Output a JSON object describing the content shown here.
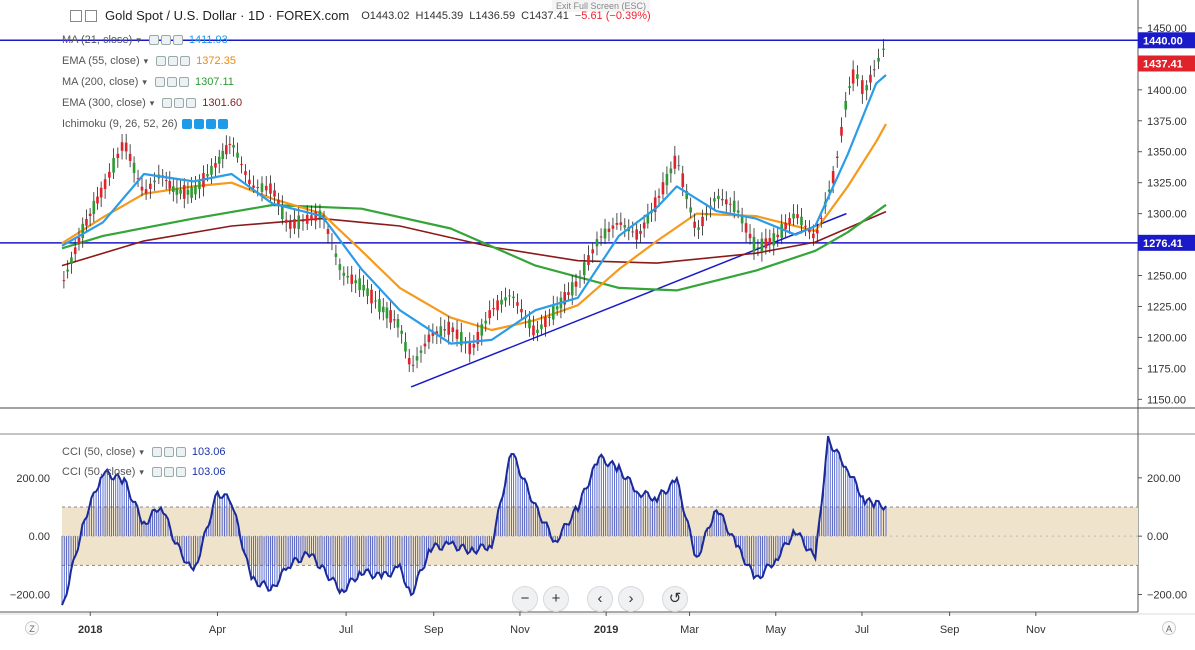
{
  "header": {
    "symbol": "Gold Spot / U.S. Dollar · 1D · FOREX.com",
    "open": "O1443.02",
    "high": "H1445.39",
    "low": "L1436.59",
    "close": "C1437.41",
    "change": "−5.61 (−0.39%)",
    "exit_fullscreen": "Exit Full Screen (ESC)"
  },
  "indicators": [
    {
      "name": "MA (21, close)",
      "value": "1411.93",
      "color": "#1e9be8"
    },
    {
      "name": "EMA (55, close)",
      "value": "1372.35",
      "color": "#f59a1a"
    },
    {
      "name": "MA (200, close)",
      "value": "1307.11",
      "color": "#35a53a"
    },
    {
      "name": "EMA (300, close)",
      "value": "1301.60",
      "color": "#8b1a1a"
    },
    {
      "name": "Ichimoku (9, 26, 52, 26)",
      "value": "",
      "color": "#1e9be8"
    }
  ],
  "cci_legends": [
    {
      "name": "CCI (50, close)",
      "value": "103.06",
      "color": "#1a33a8"
    },
    {
      "name": "CCI (50, close)",
      "value": "103.06",
      "color": "#1a33a8"
    }
  ],
  "price_axis": {
    "ticks": [
      "1450.00",
      "1425.00",
      "1400.00",
      "1375.00",
      "1350.00",
      "1325.00",
      "1300.00",
      "1275.00",
      "1250.00",
      "1225.00",
      "1200.00",
      "1175.00",
      "1150.00"
    ],
    "badges": [
      {
        "label": "1440.00",
        "color": "#1a1ac8"
      },
      {
        "label": "1437.41",
        "color": "#e0222a"
      },
      {
        "label": "1276.41",
        "color": "#1a1ac8"
      }
    ]
  },
  "cci_axis": {
    "ticks": [
      "200.00",
      "0.00",
      "−200.00"
    ]
  },
  "time_axis": [
    "2018",
    "Apr",
    "Jul",
    "Sep",
    "Nov",
    "2019",
    "Mar",
    "May",
    "Jul",
    "Sep",
    "Nov"
  ],
  "nav": {
    "zoom_out": "−",
    "zoom_in": "+",
    "back": "‹",
    "forward": "›",
    "reset": "↺"
  },
  "corners": {
    "left": "Z",
    "right": "A"
  },
  "chart_data": {
    "type": "line",
    "title": "Gold Spot / U.S. Dollar · 1D · FOREX.com",
    "x_ticks": [
      "2018",
      "Apr",
      "Jul",
      "Sep",
      "Nov",
      "2019",
      "Mar",
      "May",
      "Jul",
      "Sep",
      "Nov"
    ],
    "ylim": [
      1143,
      1458
    ],
    "horizontal_lines": [
      1440.0,
      1276.41
    ],
    "trendline": [
      {
        "x": "2018-08-16",
        "y": 1160
      },
      {
        "x": "2019-06-20",
        "y": 1300
      }
    ],
    "series": [
      {
        "name": "Price (close)",
        "values": [
          {
            "x": "2017-12-12",
            "y": 1242
          },
          {
            "x": "2017-12-28",
            "y": 1290
          },
          {
            "x": "2018-01-10",
            "y": 1320
          },
          {
            "x": "2018-01-25",
            "y": 1358
          },
          {
            "x": "2018-02-08",
            "y": 1316
          },
          {
            "x": "2018-02-20",
            "y": 1332
          },
          {
            "x": "2018-03-02",
            "y": 1318
          },
          {
            "x": "2018-03-15",
            "y": 1317
          },
          {
            "x": "2018-04-01",
            "y": 1341
          },
          {
            "x": "2018-04-11",
            "y": 1358
          },
          {
            "x": "2018-04-25",
            "y": 1322
          },
          {
            "x": "2018-05-10",
            "y": 1320
          },
          {
            "x": "2018-05-21",
            "y": 1290
          },
          {
            "x": "2018-06-05",
            "y": 1296
          },
          {
            "x": "2018-06-14",
            "y": 1300
          },
          {
            "x": "2018-06-28",
            "y": 1252
          },
          {
            "x": "2018-07-12",
            "y": 1242
          },
          {
            "x": "2018-07-26",
            "y": 1224
          },
          {
            "x": "2018-08-08",
            "y": 1210
          },
          {
            "x": "2018-08-16",
            "y": 1175
          },
          {
            "x": "2018-08-30",
            "y": 1202
          },
          {
            "x": "2018-09-13",
            "y": 1208
          },
          {
            "x": "2018-09-28",
            "y": 1190
          },
          {
            "x": "2018-10-12",
            "y": 1222
          },
          {
            "x": "2018-10-26",
            "y": 1235
          },
          {
            "x": "2018-11-12",
            "y": 1203
          },
          {
            "x": "2018-11-26",
            "y": 1222
          },
          {
            "x": "2018-12-12",
            "y": 1245
          },
          {
            "x": "2018-12-27",
            "y": 1280
          },
          {
            "x": "2019-01-10",
            "y": 1293
          },
          {
            "x": "2019-01-24",
            "y": 1282
          },
          {
            "x": "2019-02-06",
            "y": 1310
          },
          {
            "x": "2019-02-20",
            "y": 1345
          },
          {
            "x": "2019-03-06",
            "y": 1285
          },
          {
            "x": "2019-03-20",
            "y": 1314
          },
          {
            "x": "2019-04-03",
            "y": 1305
          },
          {
            "x": "2019-04-17",
            "y": 1272
          },
          {
            "x": "2019-05-01",
            "y": 1280
          },
          {
            "x": "2019-05-15",
            "y": 1300
          },
          {
            "x": "2019-05-29",
            "y": 1280
          },
          {
            "x": "2019-06-12",
            "y": 1335
          },
          {
            "x": "2019-06-21",
            "y": 1398
          },
          {
            "x": "2019-06-26",
            "y": 1415
          },
          {
            "x": "2019-07-03",
            "y": 1398
          },
          {
            "x": "2019-07-11",
            "y": 1420
          },
          {
            "x": "2019-07-18",
            "y": 1437
          }
        ]
      },
      {
        "name": "MA (21, close)",
        "values": [
          {
            "x": "2017-12-12",
            "y": 1274
          },
          {
            "x": "2018-01-10",
            "y": 1293
          },
          {
            "x": "2018-02-08",
            "y": 1332
          },
          {
            "x": "2018-03-15",
            "y": 1326
          },
          {
            "x": "2018-04-11",
            "y": 1332
          },
          {
            "x": "2018-05-10",
            "y": 1308
          },
          {
            "x": "2018-06-14",
            "y": 1298
          },
          {
            "x": "2018-07-12",
            "y": 1255
          },
          {
            "x": "2018-08-08",
            "y": 1222
          },
          {
            "x": "2018-09-13",
            "y": 1195
          },
          {
            "x": "2018-10-12",
            "y": 1198
          },
          {
            "x": "2018-11-12",
            "y": 1222
          },
          {
            "x": "2018-12-12",
            "y": 1232
          },
          {
            "x": "2019-01-10",
            "y": 1282
          },
          {
            "x": "2019-02-06",
            "y": 1305
          },
          {
            "x": "2019-02-20",
            "y": 1322
          },
          {
            "x": "2019-03-20",
            "y": 1302
          },
          {
            "x": "2019-04-17",
            "y": 1296
          },
          {
            "x": "2019-05-15",
            "y": 1283
          },
          {
            "x": "2019-05-29",
            "y": 1290
          },
          {
            "x": "2019-06-21",
            "y": 1348
          },
          {
            "x": "2019-07-11",
            "y": 1405
          },
          {
            "x": "2019-07-18",
            "y": 1411.93
          }
        ]
      },
      {
        "name": "EMA (55, close)",
        "values": [
          {
            "x": "2017-12-12",
            "y": 1276
          },
          {
            "x": "2018-01-10",
            "y": 1297
          },
          {
            "x": "2018-02-08",
            "y": 1316
          },
          {
            "x": "2018-03-15",
            "y": 1322
          },
          {
            "x": "2018-04-11",
            "y": 1325
          },
          {
            "x": "2018-05-10",
            "y": 1312
          },
          {
            "x": "2018-06-14",
            "y": 1300
          },
          {
            "x": "2018-07-12",
            "y": 1270
          },
          {
            "x": "2018-08-08",
            "y": 1240
          },
          {
            "x": "2018-09-13",
            "y": 1216
          },
          {
            "x": "2018-10-12",
            "y": 1206
          },
          {
            "x": "2018-11-12",
            "y": 1214
          },
          {
            "x": "2018-12-12",
            "y": 1226
          },
          {
            "x": "2019-01-10",
            "y": 1255
          },
          {
            "x": "2019-02-06",
            "y": 1278
          },
          {
            "x": "2019-03-06",
            "y": 1300
          },
          {
            "x": "2019-04-17",
            "y": 1298
          },
          {
            "x": "2019-05-29",
            "y": 1286
          },
          {
            "x": "2019-06-21",
            "y": 1322
          },
          {
            "x": "2019-07-11",
            "y": 1358
          },
          {
            "x": "2019-07-18",
            "y": 1372.35
          }
        ]
      },
      {
        "name": "MA (200, close)",
        "values": [
          {
            "x": "2017-12-12",
            "y": 1272
          },
          {
            "x": "2018-01-10",
            "y": 1282
          },
          {
            "x": "2018-03-15",
            "y": 1296
          },
          {
            "x": "2018-05-10",
            "y": 1307
          },
          {
            "x": "2018-07-12",
            "y": 1304
          },
          {
            "x": "2018-09-13",
            "y": 1288
          },
          {
            "x": "2018-11-12",
            "y": 1258
          },
          {
            "x": "2019-01-10",
            "y": 1240
          },
          {
            "x": "2019-02-20",
            "y": 1238
          },
          {
            "x": "2019-04-17",
            "y": 1254
          },
          {
            "x": "2019-05-29",
            "y": 1270
          },
          {
            "x": "2019-06-21",
            "y": 1285
          },
          {
            "x": "2019-07-18",
            "y": 1307.11
          }
        ]
      },
      {
        "name": "EMA (300, close)",
        "values": [
          {
            "x": "2017-12-12",
            "y": 1258
          },
          {
            "x": "2018-02-08",
            "y": 1278
          },
          {
            "x": "2018-04-11",
            "y": 1290
          },
          {
            "x": "2018-06-14",
            "y": 1296
          },
          {
            "x": "2018-08-08",
            "y": 1290
          },
          {
            "x": "2018-10-12",
            "y": 1273
          },
          {
            "x": "2018-12-12",
            "y": 1262
          },
          {
            "x": "2019-02-06",
            "y": 1260
          },
          {
            "x": "2019-04-17",
            "y": 1268
          },
          {
            "x": "2019-05-29",
            "y": 1277
          },
          {
            "x": "2019-07-18",
            "y": 1301.6
          }
        ]
      }
    ],
    "cci": {
      "name": "CCI (50, close)",
      "ylim": [
        -260,
        340
      ],
      "band": [
        -100,
        100
      ],
      "values": [
        {
          "x": "2017-12-12",
          "y": -250
        },
        {
          "x": "2017-12-28",
          "y": 60
        },
        {
          "x": "2018-01-10",
          "y": 220
        },
        {
          "x": "2018-01-25",
          "y": 190
        },
        {
          "x": "2018-02-08",
          "y": 40
        },
        {
          "x": "2018-02-20",
          "y": 110
        },
        {
          "x": "2018-03-02",
          "y": -20
        },
        {
          "x": "2018-03-15",
          "y": -130
        },
        {
          "x": "2018-04-01",
          "y": 150
        },
        {
          "x": "2018-04-11",
          "y": 120
        },
        {
          "x": "2018-04-25",
          "y": -150
        },
        {
          "x": "2018-05-10",
          "y": -180
        },
        {
          "x": "2018-05-21",
          "y": -100
        },
        {
          "x": "2018-06-05",
          "y": -60
        },
        {
          "x": "2018-06-14",
          "y": -110
        },
        {
          "x": "2018-06-28",
          "y": -190
        },
        {
          "x": "2018-07-12",
          "y": -120
        },
        {
          "x": "2018-07-26",
          "y": -140
        },
        {
          "x": "2018-08-08",
          "y": -110
        },
        {
          "x": "2018-08-16",
          "y": -200
        },
        {
          "x": "2018-08-30",
          "y": -40
        },
        {
          "x": "2018-09-13",
          "y": -30
        },
        {
          "x": "2018-09-28",
          "y": -50
        },
        {
          "x": "2018-10-12",
          "y": -30
        },
        {
          "x": "2018-10-26",
          "y": 290
        },
        {
          "x": "2018-11-12",
          "y": 100
        },
        {
          "x": "2018-11-26",
          "y": -20
        },
        {
          "x": "2018-12-12",
          "y": 100
        },
        {
          "x": "2018-12-27",
          "y": 270
        },
        {
          "x": "2019-01-10",
          "y": 230
        },
        {
          "x": "2019-01-24",
          "y": 150
        },
        {
          "x": "2019-02-06",
          "y": 130
        },
        {
          "x": "2019-02-20",
          "y": 190
        },
        {
          "x": "2019-03-06",
          "y": -80
        },
        {
          "x": "2019-03-20",
          "y": 100
        },
        {
          "x": "2019-04-03",
          "y": -30
        },
        {
          "x": "2019-04-17",
          "y": -150
        },
        {
          "x": "2019-05-01",
          "y": -80
        },
        {
          "x": "2019-05-15",
          "y": 20
        },
        {
          "x": "2019-05-29",
          "y": -80
        },
        {
          "x": "2019-06-07",
          "y": 330
        },
        {
          "x": "2019-06-21",
          "y": 230
        },
        {
          "x": "2019-07-03",
          "y": 120
        },
        {
          "x": "2019-07-11",
          "y": 110
        },
        {
          "x": "2019-07-18",
          "y": 103.06
        }
      ]
    }
  }
}
